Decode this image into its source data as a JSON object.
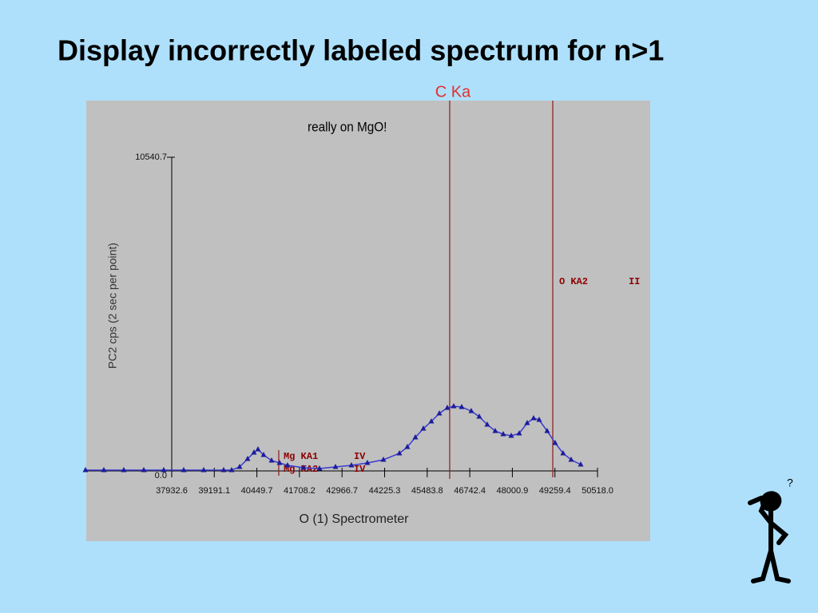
{
  "page_title": "Display incorrectly labeled spectrum for n>1",
  "chart_data": {
    "type": "line",
    "annotation": "really on MgO!",
    "xlabel": "O  (1) Spectrometer",
    "ylabel": "PC2 cps (2 sec per point)",
    "xlim": [
      35360,
      50518
    ],
    "ylim": [
      0,
      10540.7
    ],
    "xticks": [
      37932.6,
      39191.1,
      40449.7,
      41708.2,
      42966.7,
      44225.3,
      45483.8,
      46742.4,
      48000.9,
      49259.4,
      {
        "value": 50518,
        "label": "50518.0"
      }
    ],
    "yticks": [
      {
        "value": 0,
        "label": "0.0"
      },
      10540.7
    ],
    "x": [
      35383,
      35926,
      36516,
      37107,
      37696,
      38287,
      38877,
      39467,
      39703,
      39939,
      40175,
      40364,
      40482,
      40648,
      40884,
      41120,
      41356,
      41828,
      42300,
      42773,
      43245,
      43717,
      44189,
      44661,
      44897,
      45134,
      45370,
      45606,
      45842,
      46078,
      46267,
      46503,
      46786,
      47022,
      47258,
      47494,
      47731,
      47967,
      48203,
      48439,
      48628,
      48793,
      49029,
      49265,
      49501,
      49738,
      50021
    ],
    "series": [
      {
        "color": "#1c1c9c",
        "marker": "triangle",
        "values": [
          27,
          27,
          27,
          27,
          27,
          27,
          27,
          27,
          27,
          134,
          402,
          617,
          724,
          536,
          349,
          268,
          188,
          107,
          80,
          134,
          188,
          268,
          375,
          590,
          805,
          1126,
          1421,
          1663,
          1931,
          2119,
          2172,
          2146,
          2012,
          1824,
          1556,
          1341,
          1234,
          1180,
          1261,
          1609,
          1770,
          1716,
          1341,
          939,
          590,
          375,
          215
        ]
      }
    ],
    "markers": [
      {
        "label": "C Ka",
        "x": 46149
      },
      {
        "label": "O  KA2",
        "order": "II",
        "x": 49195
      },
      {
        "label": "Mg KA1",
        "order": "IV",
        "x": 41096
      },
      {
        "label": "Mg KA2",
        "order": "IV",
        "x": 41096
      }
    ]
  }
}
